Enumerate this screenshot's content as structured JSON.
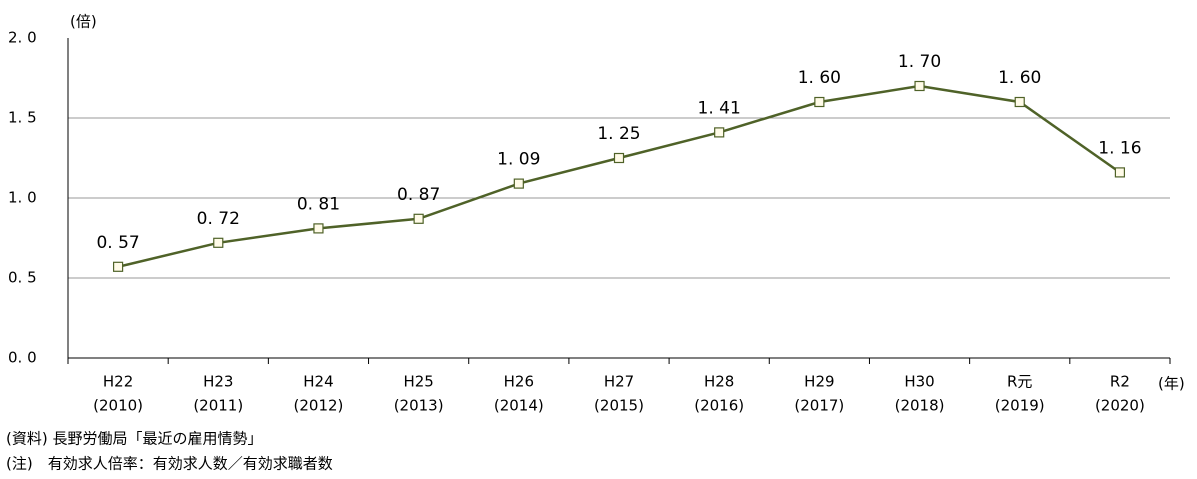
{
  "chart_data": {
    "type": "line",
    "y_unit": "(倍)",
    "x_unit": "(年)",
    "categories": [
      "H22",
      "H23",
      "H24",
      "H25",
      "H26",
      "H27",
      "H28",
      "H29",
      "H30",
      "R元",
      "R2"
    ],
    "category_years": [
      "(2010)",
      "(2011)",
      "(2012)",
      "(2013)",
      "(2014)",
      "(2015)",
      "(2016)",
      "(2017)",
      "(2018)",
      "(2019)",
      "(2020)"
    ],
    "series": [
      {
        "color": "#4f6228",
        "values": [
          0.57,
          0.72,
          0.81,
          0.87,
          1.09,
          1.25,
          1.41,
          1.6,
          1.7,
          1.6,
          1.16
        ],
        "value_labels": [
          "0. 57",
          "0. 72",
          "0. 81",
          "0. 87",
          "1. 09",
          "1. 25",
          "1. 41",
          "1. 60",
          "1. 70",
          "1. 60",
          "1. 16"
        ]
      }
    ],
    "ylim": [
      0,
      2
    ],
    "yticks": [
      {
        "value": 0,
        "label": "0. 0"
      },
      {
        "value": 0.5,
        "label": "0. 5"
      },
      {
        "value": 1,
        "label": "1. 0"
      },
      {
        "value": 1.5,
        "label": "1. 5"
      },
      {
        "value": 2,
        "label": "2. 0"
      }
    ],
    "grid": true,
    "notes": [
      "(資料) 長野労働局「最近の雇用情勢」",
      "(注)　有効求人倍率：有効求人数／有効求職者数"
    ]
  }
}
